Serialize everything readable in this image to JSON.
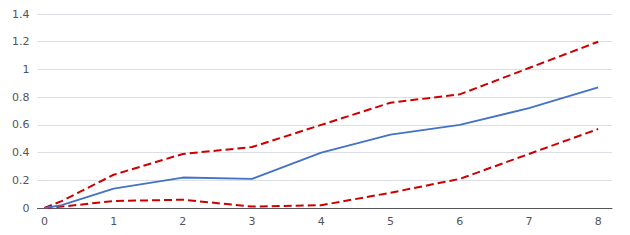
{
  "chart_data": {
    "type": "line",
    "x": [
      0,
      0.25,
      1,
      2,
      3,
      4,
      5,
      6,
      7,
      8
    ],
    "series": [
      {
        "color": "#CC0000",
        "line_style": "dashed",
        "values": [
          0,
          0.05,
          0.24,
          0.39,
          0.44,
          0.6,
          0.76,
          0.82,
          1.01,
          1.2
        ]
      },
      {
        "color": "#CC0000",
        "line_style": "dashed",
        "values": [
          0,
          0.01,
          0.05,
          0.06,
          0.01,
          0.02,
          0.11,
          0.21,
          0.39,
          0.57
        ]
      },
      {
        "color": "#4472C4",
        "line_style": "solid",
        "values": [
          0,
          0.02,
          0.14,
          0.22,
          0.21,
          0.4,
          0.53,
          0.6,
          0.72,
          0.87
        ]
      }
    ],
    "xlim": [
      -0.1,
      8.2
    ],
    "xticks": [
      0,
      1,
      2,
      3,
      4,
      5,
      6,
      7,
      8
    ],
    "ylim": [
      0,
      1.4
    ],
    "yticks": [
      0,
      0.2,
      0.4,
      0.6,
      0.8,
      1.0,
      1.2,
      1.4
    ],
    "grid": "y"
  }
}
